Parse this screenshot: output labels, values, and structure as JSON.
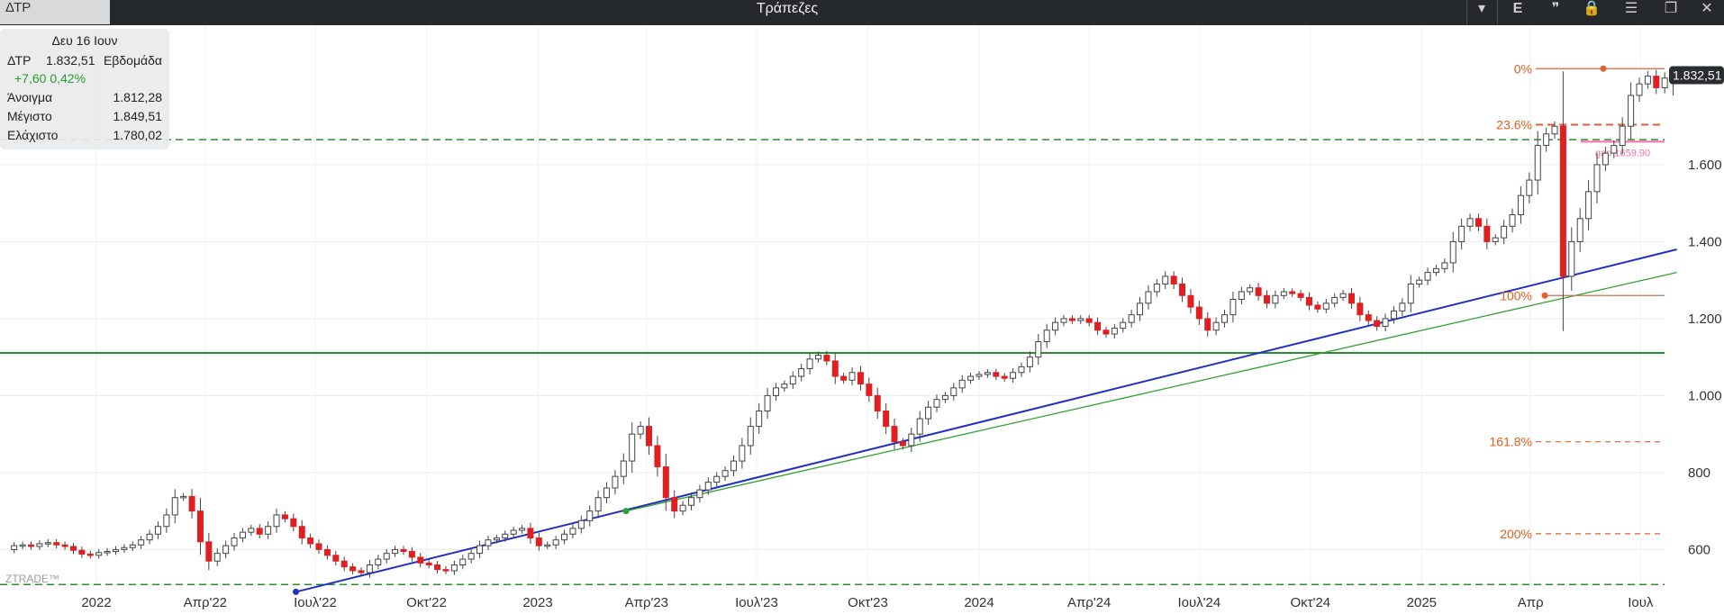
{
  "window": {
    "symbol_tab": "ΔΤΡ",
    "title": "Τράπεζες",
    "buttons": [
      "▾",
      "E",
      "❞",
      "🔒",
      "☰",
      "❐",
      "✕"
    ]
  },
  "info_box": {
    "date": "Δευ 16 Ιουν",
    "symbol": "ΔΤΡ",
    "last": "1.832,51",
    "period": "Εβδομάδα",
    "change": "+7,60",
    "change_pct": "0,42%",
    "open_label": "Άνοιγμα",
    "open": "1.812,28",
    "high_label": "Μέγιστο",
    "high": "1.849,51",
    "low_label": "Ελάχιστο",
    "low": "1.780,02"
  },
  "price_badge": "1.832,51",
  "watermark": "ZTRADE™",
  "chart_data": {
    "type": "candlestick",
    "period": "weekly",
    "y_ticks": [
      600,
      800,
      1000,
      1200,
      1400,
      1600
    ],
    "y_tick_labels": [
      "600",
      "800",
      "1.000",
      "1.200",
      "1.400",
      "1.600"
    ],
    "ylim": [
      505,
      1918
    ],
    "x_labels": [
      "2022",
      "Απρ'22",
      "Ιουλ'22",
      "Οκτ'22",
      "2023",
      "Απρ'23",
      "Ιουλ'23",
      "Οκτ'23",
      "2024",
      "Απρ'24",
      "Ιουλ'24",
      "Οκτ'24",
      "2025",
      "Απρ",
      "Ιουλ"
    ],
    "x_label_dates": [
      "2022-01-01",
      "2022-04-01",
      "2022-07-01",
      "2022-10-01",
      "2023-01-01",
      "2023-04-01",
      "2023-07-01",
      "2023-10-01",
      "2024-01-01",
      "2024-04-01",
      "2024-07-01",
      "2024-10-01",
      "2025-01-01",
      "2025-04-01",
      "2025-07-01"
    ],
    "candles_start": "2021-10-25",
    "candle_colors": {
      "up": "#ffffff",
      "down": "#e02020",
      "wick": "#444444"
    },
    "closes": [
      610,
      612,
      608,
      615,
      618,
      612,
      608,
      598,
      588,
      585,
      592,
      595,
      600,
      605,
      612,
      625,
      640,
      660,
      690,
      735,
      738,
      700,
      620,
      570,
      590,
      610,
      630,
      645,
      655,
      640,
      660,
      690,
      680,
      660,
      630,
      615,
      600,
      585,
      570,
      555,
      545,
      540,
      560,
      575,
      590,
      600,
      595,
      580,
      565,
      560,
      548,
      545,
      560,
      575,
      590,
      610,
      625,
      630,
      640,
      650,
      655,
      630,
      610,
      612,
      625,
      640,
      655,
      675,
      700,
      735,
      760,
      790,
      830,
      900,
      920,
      870,
      815,
      735,
      700,
      715,
      735,
      755,
      775,
      790,
      805,
      830,
      870,
      920,
      960,
      1000,
      1020,
      1030,
      1050,
      1070,
      1095,
      1105,
      1090,
      1050,
      1040,
      1060,
      1030,
      1000,
      960,
      920,
      880,
      870,
      900,
      940,
      970,
      990,
      1000,
      1020,
      1040,
      1050,
      1055,
      1060,
      1050,
      1045,
      1060,
      1075,
      1100,
      1140,
      1170,
      1190,
      1200,
      1195,
      1200,
      1190,
      1170,
      1160,
      1175,
      1190,
      1210,
      1240,
      1270,
      1290,
      1310,
      1290,
      1260,
      1230,
      1200,
      1170,
      1190,
      1210,
      1250,
      1270,
      1280,
      1260,
      1240,
      1260,
      1270,
      1265,
      1255,
      1235,
      1225,
      1240,
      1255,
      1265,
      1240,
      1210,
      1195,
      1180,
      1200,
      1220,
      1240,
      1290,
      1300,
      1320,
      1330,
      1345,
      1400,
      1440,
      1460,
      1440,
      1400,
      1410,
      1440,
      1470,
      1520,
      1560,
      1650,
      1680,
      1700,
      1310,
      1400,
      1460,
      1530,
      1600,
      1630,
      1650,
      1700,
      1780,
      1810,
      1830,
      1800,
      1825,
      1832.51
    ],
    "fibonacci": [
      {
        "label": "0%",
        "value": 1849.51
      },
      {
        "label": "23.6%",
        "value": 1704
      },
      {
        "label": "100%",
        "value": 1260
      },
      {
        "label": "161.8%",
        "value": 880
      },
      {
        "label": "200%",
        "value": 641
      }
    ],
    "annotations": [
      {
        "type": "gap",
        "label": "gap 1659.90",
        "value": 1659.9
      }
    ],
    "horizontal_lines": [
      {
        "value": 1665,
        "style": "dashed",
        "color": "#2e8b2e"
      },
      {
        "value": 1111,
        "style": "solid",
        "color": "#2e8b2e"
      },
      {
        "value": 509,
        "style": "dashed",
        "color": "#2e8b2e"
      }
    ],
    "trendlines": [
      {
        "color": "#2030c0",
        "from": {
          "date": "2022-06-15",
          "value": 490
        },
        "to": {
          "date": "2025-07-31",
          "value": 1380
        }
      },
      {
        "color": "#30a030",
        "from": {
          "date": "2023-03-15",
          "value": 700
        },
        "to": {
          "date": "2025-07-31",
          "value": 1320
        }
      }
    ]
  }
}
